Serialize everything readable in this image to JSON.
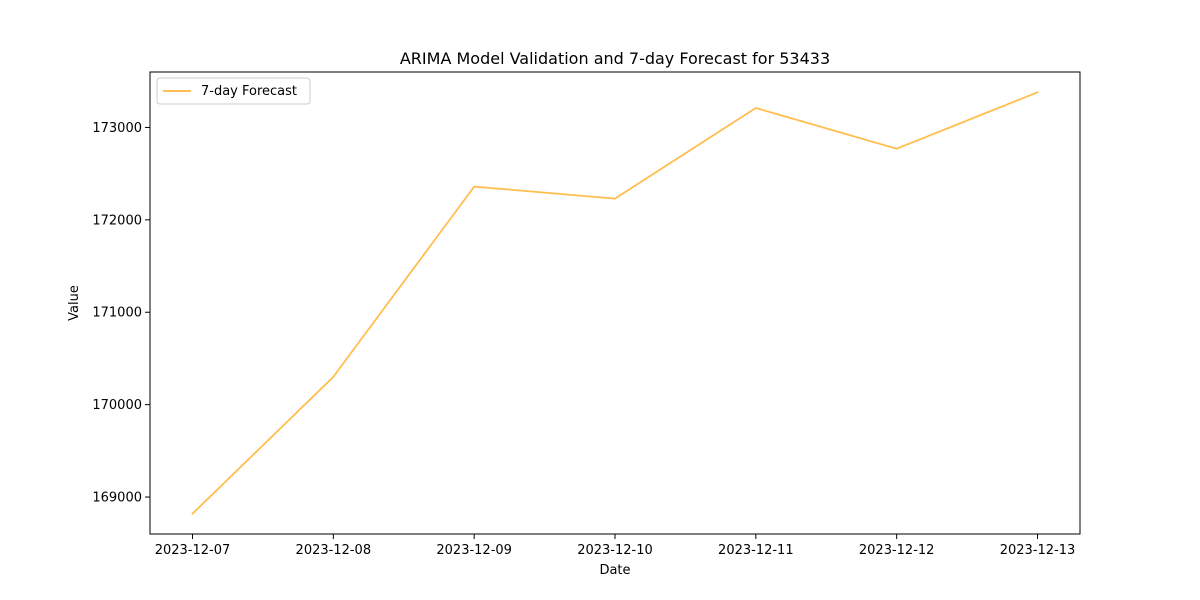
{
  "chart_data": {
    "type": "line",
    "title": "ARIMA Model Validation and 7-day Forecast for 53433",
    "xlabel": "Date",
    "ylabel": "Value",
    "categories": [
      "2023-12-07",
      "2023-12-08",
      "2023-12-09",
      "2023-12-10",
      "2023-12-11",
      "2023-12-12",
      "2023-12-13"
    ],
    "series": [
      {
        "name": "7-day Forecast",
        "color": "#ffbe4d",
        "values": [
          168820,
          170300,
          172360,
          172230,
          173210,
          172770,
          173380
        ]
      }
    ],
    "yticks": [
      169000,
      170000,
      171000,
      172000,
      173000
    ],
    "ylim": [
      168600,
      173600
    ],
    "grid": false,
    "legend": "top-left"
  }
}
